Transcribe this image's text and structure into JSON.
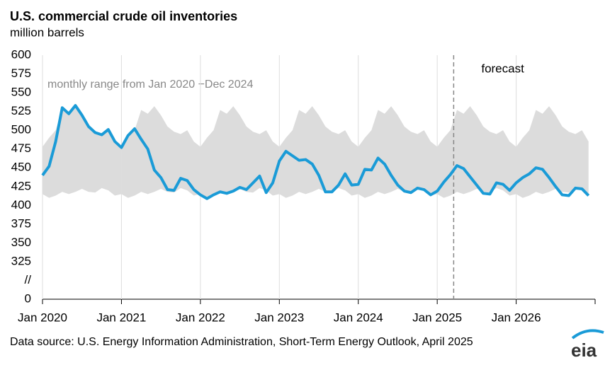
{
  "chart_data": {
    "type": "line",
    "title": "U.S. commercial crude oil inventories",
    "subtitle": "million barrels",
    "source": "Data source: U.S. Energy Information Administration, Short-Term Energy Outlook, April 2025",
    "logo": "eia",
    "forecast_label": "forecast",
    "forecast_index": 63,
    "categories": [
      "Jan 2020",
      null,
      null,
      null,
      null,
      null,
      null,
      null,
      null,
      null,
      null,
      null,
      "Jan 2021",
      null,
      null,
      null,
      null,
      null,
      null,
      null,
      null,
      null,
      null,
      null,
      "Jan 2022",
      null,
      null,
      null,
      null,
      null,
      null,
      null,
      null,
      null,
      null,
      null,
      "Jan 2023",
      null,
      null,
      null,
      null,
      null,
      null,
      null,
      null,
      null,
      null,
      null,
      "Jan 2024",
      null,
      null,
      null,
      null,
      null,
      null,
      null,
      null,
      null,
      null,
      null,
      "Jan 2025",
      null,
      null,
      null,
      null,
      null,
      null,
      null,
      null,
      null,
      null,
      null,
      "Jan 2026",
      null,
      null,
      null,
      null,
      null,
      null,
      null,
      null,
      null,
      null,
      null
    ],
    "series": [
      {
        "name": "inventories",
        "color": "#1a9bd7",
        "values": [
          440,
          452,
          485,
          530,
          522,
          533,
          520,
          505,
          497,
          494,
          501,
          485,
          477,
          493,
          502,
          488,
          475,
          447,
          437,
          421,
          420,
          436,
          433,
          421,
          414,
          409,
          414,
          418,
          416,
          419,
          424,
          421,
          430,
          439,
          417,
          430,
          459,
          472,
          466,
          460,
          461,
          455,
          440,
          418,
          418,
          427,
          442,
          427,
          428,
          448,
          447,
          463,
          455,
          440,
          427,
          419,
          417,
          423,
          421,
          414,
          419,
          431,
          441,
          453,
          449,
          438,
          427,
          416,
          415,
          430,
          428,
          420,
          430,
          437,
          442,
          450,
          448,
          437,
          425,
          414,
          413,
          423,
          422,
          413
        ]
      }
    ],
    "range": {
      "label": "monthly range from Jan 2020 −Dec 2024",
      "color": "#dcdcdc",
      "max": [
        478,
        490,
        500,
        527,
        522,
        532,
        520,
        505,
        498,
        495,
        500,
        485
      ],
      "min": [
        415,
        410,
        413,
        418,
        415,
        418,
        422,
        418,
        417,
        423,
        420,
        413
      ]
    },
    "ylim": [
      0,
      600
    ],
    "ybreak": [
      0,
      300
    ],
    "yticks": [
      0,
      {
        "value": 300,
        "label": "//"
      },
      325,
      350,
      375,
      400,
      425,
      450,
      475,
      500,
      525,
      550,
      575,
      600
    ]
  }
}
